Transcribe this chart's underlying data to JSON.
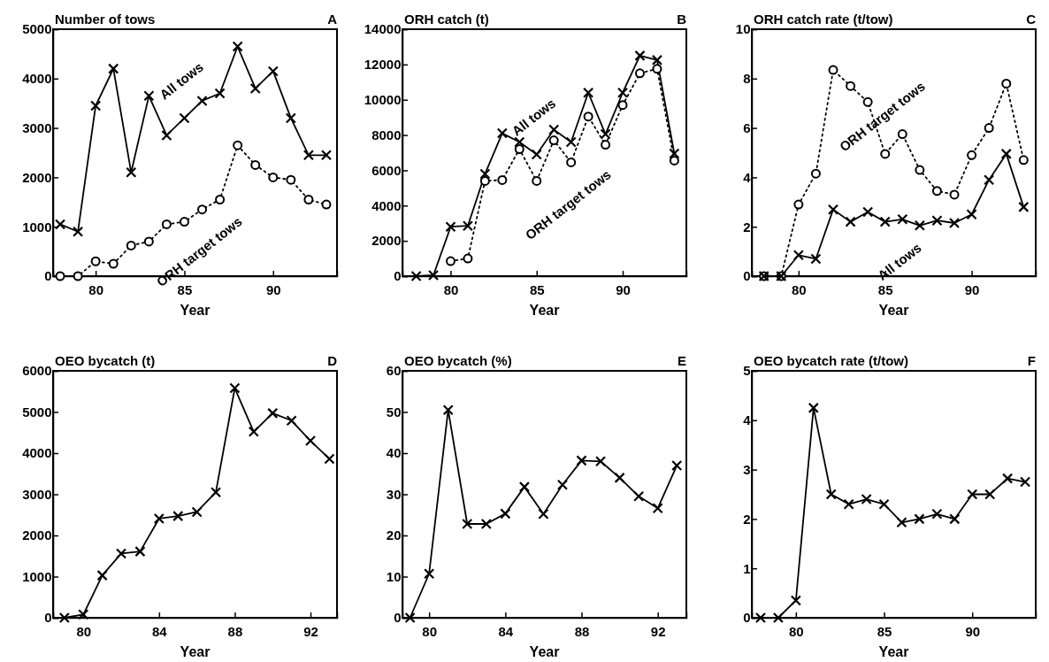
{
  "chart_data": [
    {
      "type": "line",
      "title": "Number of tows",
      "annotations": [
        "A"
      ],
      "xlabel": "Year",
      "xlim": [
        77.6,
        93.6
      ],
      "xticks": [
        80,
        85,
        90
      ],
      "ylim": [
        0,
        5000
      ],
      "yticks": [
        0,
        1000,
        2000,
        3000,
        4000,
        5000
      ],
      "grid": false,
      "legend": false,
      "x": [
        78,
        79,
        80,
        81,
        82,
        83,
        84,
        85,
        86,
        87,
        88,
        89,
        90,
        91,
        92,
        93
      ],
      "series": [
        {
          "name": "All tows",
          "color": "#000000",
          "marker": "cross",
          "line_style": "solid",
          "values": [
            1050,
            900,
            3450,
            4200,
            2100,
            3650,
            2850,
            3200,
            3550,
            3700,
            4650,
            3800,
            4150,
            3200,
            2450,
            2450
          ]
        },
        {
          "name": "ORH target tows",
          "color": "#000000",
          "marker": "circle",
          "line_style": "dotted",
          "values": [
            0,
            0,
            300,
            250,
            620,
            700,
            1050,
            1100,
            1350,
            1550,
            2650,
            2250,
            2000,
            1950,
            1550,
            1450
          ]
        }
      ]
    },
    {
      "type": "line",
      "title": "ORH catch (t)",
      "annotations": [
        "B"
      ],
      "xlabel": "Year",
      "xlim": [
        77.2,
        93.7
      ],
      "xticks": [
        80,
        85,
        90
      ],
      "ylim": [
        0,
        14000
      ],
      "yticks": [
        0,
        2000,
        4000,
        6000,
        8000,
        10000,
        12000,
        14000
      ],
      "grid": false,
      "legend": false,
      "x": [
        78,
        79,
        80,
        81,
        82,
        83,
        84,
        85,
        86,
        87,
        88,
        89,
        90,
        91,
        92,
        93
      ],
      "series": [
        {
          "name": "All tows",
          "color": "#000000",
          "marker": "cross",
          "line_style": "solid",
          "values": [
            0,
            50,
            2800,
            2850,
            5800,
            8100,
            7600,
            6900,
            8300,
            7600,
            10400,
            8050,
            10400,
            12500,
            12250,
            6950
          ]
        },
        {
          "name": "ORH target tows",
          "color": "#000000",
          "marker": "circle",
          "line_style": "dotted",
          "values": [
            null,
            null,
            850,
            1000,
            5400,
            5450,
            7200,
            5400,
            7700,
            6450,
            9050,
            7450,
            9700,
            11500,
            11750,
            6550
          ]
        }
      ]
    },
    {
      "type": "line",
      "title": "ORH catch rate (t/tow)",
      "annotations": [
        "C"
      ],
      "xlabel": "Year",
      "xlim": [
        77.3,
        93.7
      ],
      "xticks": [
        80,
        85,
        90
      ],
      "ylim": [
        0,
        10
      ],
      "yticks": [
        0,
        2,
        4,
        6,
        8,
        10
      ],
      "grid": false,
      "legend": false,
      "x": [
        78,
        79,
        80,
        81,
        82,
        83,
        84,
        85,
        86,
        87,
        88,
        89,
        90,
        91,
        92,
        93
      ],
      "series": [
        {
          "name": "ORH target tows",
          "color": "#000000",
          "marker": "circle",
          "line_style": "dotted",
          "values": [
            0,
            0,
            2.9,
            4.15,
            8.35,
            7.7,
            7.05,
            4.95,
            5.75,
            4.3,
            3.45,
            3.3,
            4.9,
            6.0,
            7.8,
            4.7
          ]
        },
        {
          "name": "All tows",
          "color": "#000000",
          "marker": "cross",
          "line_style": "solid",
          "values": [
            0,
            0,
            0.85,
            0.7,
            2.7,
            2.2,
            2.6,
            2.2,
            2.3,
            2.05,
            2.25,
            2.15,
            2.5,
            3.9,
            4.95,
            2.8
          ]
        }
      ]
    },
    {
      "type": "line",
      "title": "OEO bycatch (t)",
      "annotations": [
        "D"
      ],
      "xlabel": "Year",
      "xlim": [
        78.4,
        93.4
      ],
      "xticks": [
        80,
        84,
        88,
        92
      ],
      "ylim": [
        0,
        6000
      ],
      "yticks": [
        0,
        1000,
        2000,
        3000,
        4000,
        5000,
        6000
      ],
      "grid": false,
      "legend": false,
      "x": [
        79,
        80,
        81,
        82,
        83,
        84,
        85,
        86,
        87,
        88,
        89,
        90,
        91,
        92,
        93
      ],
      "series": [
        {
          "color": "#000000",
          "marker": "cross",
          "line_style": "solid",
          "values": [
            0,
            80,
            1030,
            1560,
            1610,
            2410,
            2470,
            2570,
            3050,
            5580,
            4520,
            4970,
            4790,
            4300,
            3860
          ]
        }
      ]
    },
    {
      "type": "line",
      "title": "OEO bycatch (%)",
      "annotations": [
        "E"
      ],
      "xlabel": "Year",
      "xlim": [
        78.6,
        93.5
      ],
      "xticks": [
        80,
        84,
        88,
        92
      ],
      "ylim": [
        0,
        60
      ],
      "yticks": [
        0,
        10,
        20,
        30,
        40,
        50,
        60
      ],
      "grid": false,
      "legend": false,
      "x": [
        79,
        80,
        81,
        82,
        83,
        84,
        85,
        86,
        87,
        88,
        89,
        90,
        91,
        92,
        93
      ],
      "series": [
        {
          "color": "#000000",
          "marker": "cross",
          "line_style": "solid",
          "values": [
            0,
            10.7,
            50.5,
            22.8,
            22.8,
            25.3,
            31.8,
            25.2,
            32.3,
            38.2,
            38.0,
            34.0,
            29.5,
            26.6,
            37.0
          ]
        }
      ]
    },
    {
      "type": "line",
      "title": "OEO bycatch rate (t/tow)",
      "annotations": [
        "F"
      ],
      "xlabel": "Year",
      "xlim": [
        77.5,
        93.6
      ],
      "xticks": [
        80,
        85,
        90
      ],
      "ylim": [
        0,
        5
      ],
      "yticks": [
        0,
        1,
        2,
        3,
        4,
        5
      ],
      "grid": false,
      "legend": false,
      "x": [
        78,
        79,
        80,
        81,
        82,
        83,
        84,
        85,
        86,
        87,
        88,
        89,
        90,
        91,
        92,
        93
      ],
      "series": [
        {
          "color": "#000000",
          "marker": "cross",
          "line_style": "solid",
          "values": [
            0,
            0,
            0.35,
            4.25,
            2.5,
            2.3,
            2.4,
            2.3,
            1.93,
            2.0,
            2.1,
            2.0,
            2.5,
            2.5,
            2.82,
            2.75
          ]
        }
      ]
    }
  ]
}
